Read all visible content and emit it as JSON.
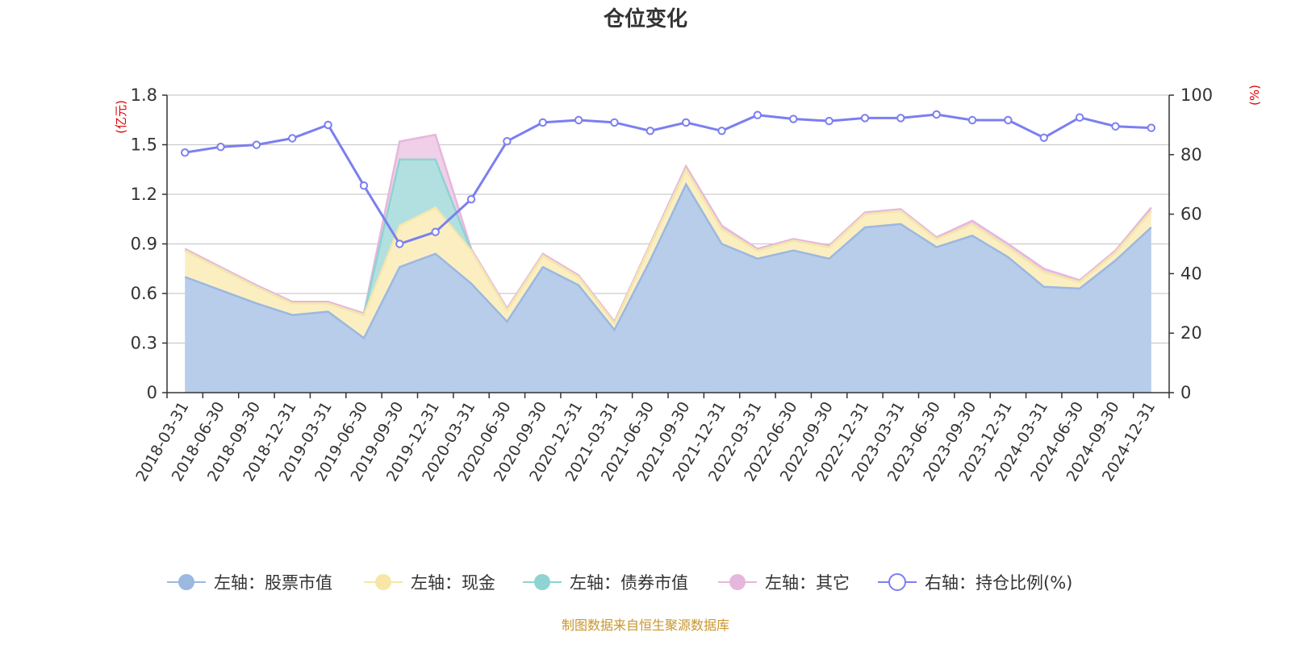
{
  "source_note": "制图数据来自恒生聚源数据库",
  "colors": {
    "stock": "#9bb8e0",
    "stock_fill": "#b8cdea",
    "cash": "#f7e6a8",
    "cash_fill": "#fbefc2",
    "bond": "#8fd3d3",
    "bond_fill": "#b2e0e0",
    "other": "#e6b7dc",
    "other_fill": "#f0cfe8",
    "ratio": "#7b7ff0",
    "axis": "#333333",
    "grid": "#cccccc",
    "unit_label": "#e00000",
    "source": "#c8962e"
  },
  "chart_data": {
    "type": "area",
    "title": "仓位变化",
    "y_left_unit": "(亿元)",
    "y_right_unit": "(%)",
    "y_left_range": [
      0,
      1.8
    ],
    "y_left_ticks": [
      0,
      0.3,
      0.6,
      0.9,
      1.2,
      1.5,
      1.8
    ],
    "y_left_tick_labels": [
      "0",
      "0.3",
      "0.6",
      "0.9",
      "1.2",
      "1.5",
      "1.8"
    ],
    "y_right_range": [
      0,
      100
    ],
    "y_right_ticks": [
      0,
      20,
      40,
      60,
      80,
      100
    ],
    "y_right_tick_labels": [
      "0",
      "20",
      "40",
      "60",
      "80",
      "100"
    ],
    "grid": true,
    "legend_position": "bottom",
    "stacked": true,
    "x": [
      "2018-03-31",
      "2018-06-30",
      "2018-09-30",
      "2018-12-31",
      "2019-03-31",
      "2019-06-30",
      "2019-09-30",
      "2019-12-31",
      "2020-03-31",
      "2020-06-30",
      "2020-09-30",
      "2020-12-31",
      "2021-03-31",
      "2021-06-30",
      "2021-09-30",
      "2021-12-31",
      "2022-03-31",
      "2022-06-30",
      "2022-09-30",
      "2022-12-31",
      "2023-03-31",
      "2023-06-30",
      "2023-09-30",
      "2023-12-31",
      "2024-03-31",
      "2024-06-30",
      "2024-09-30",
      "2024-12-31"
    ],
    "series": [
      {
        "name": "左轴：股票市值",
        "axis": "left",
        "kind": "area",
        "values": [
          0.7,
          0.62,
          0.54,
          0.47,
          0.49,
          0.33,
          0.76,
          0.84,
          0.66,
          0.43,
          0.76,
          0.65,
          0.38,
          0.8,
          1.26,
          0.9,
          0.81,
          0.86,
          0.81,
          1.0,
          1.02,
          0.88,
          0.95,
          0.82,
          0.64,
          0.63,
          0.8,
          1.0
        ]
      },
      {
        "name": "左轴：现金",
        "axis": "left",
        "kind": "area",
        "values": [
          0.16,
          0.13,
          0.1,
          0.07,
          0.05,
          0.14,
          0.25,
          0.28,
          0.2,
          0.07,
          0.07,
          0.05,
          0.04,
          0.09,
          0.09,
          0.09,
          0.05,
          0.06,
          0.07,
          0.08,
          0.08,
          0.05,
          0.07,
          0.06,
          0.09,
          0.04,
          0.05,
          0.1
        ]
      },
      {
        "name": "左轴：债券市值",
        "axis": "left",
        "kind": "area",
        "values": [
          0,
          0,
          0,
          0,
          0,
          0,
          0.4,
          0.29,
          0,
          0,
          0,
          0,
          0,
          0,
          0,
          0,
          0,
          0,
          0,
          0,
          0,
          0,
          0,
          0,
          0,
          0,
          0,
          0
        ]
      },
      {
        "name": "左轴：其它",
        "axis": "left",
        "kind": "area",
        "values": [
          0.01,
          0.01,
          0.01,
          0.01,
          0.01,
          0.01,
          0.11,
          0.15,
          0.01,
          0.01,
          0.01,
          0.01,
          0.01,
          0.01,
          0.02,
          0.02,
          0.01,
          0.01,
          0.01,
          0.01,
          0.01,
          0.01,
          0.02,
          0.02,
          0.02,
          0.01,
          0.01,
          0.02
        ]
      },
      {
        "name": "右轴：持仓比例(%)",
        "axis": "right",
        "kind": "line",
        "values": [
          80.7,
          82.6,
          83.3,
          85.5,
          90.0,
          69.6,
          50.0,
          54.0,
          65.0,
          84.5,
          90.8,
          91.6,
          90.8,
          88.0,
          90.8,
          88.0,
          93.3,
          92.0,
          91.3,
          92.3,
          92.3,
          93.5,
          91.6,
          91.6,
          85.7,
          92.5,
          89.5,
          89.0
        ]
      }
    ]
  }
}
